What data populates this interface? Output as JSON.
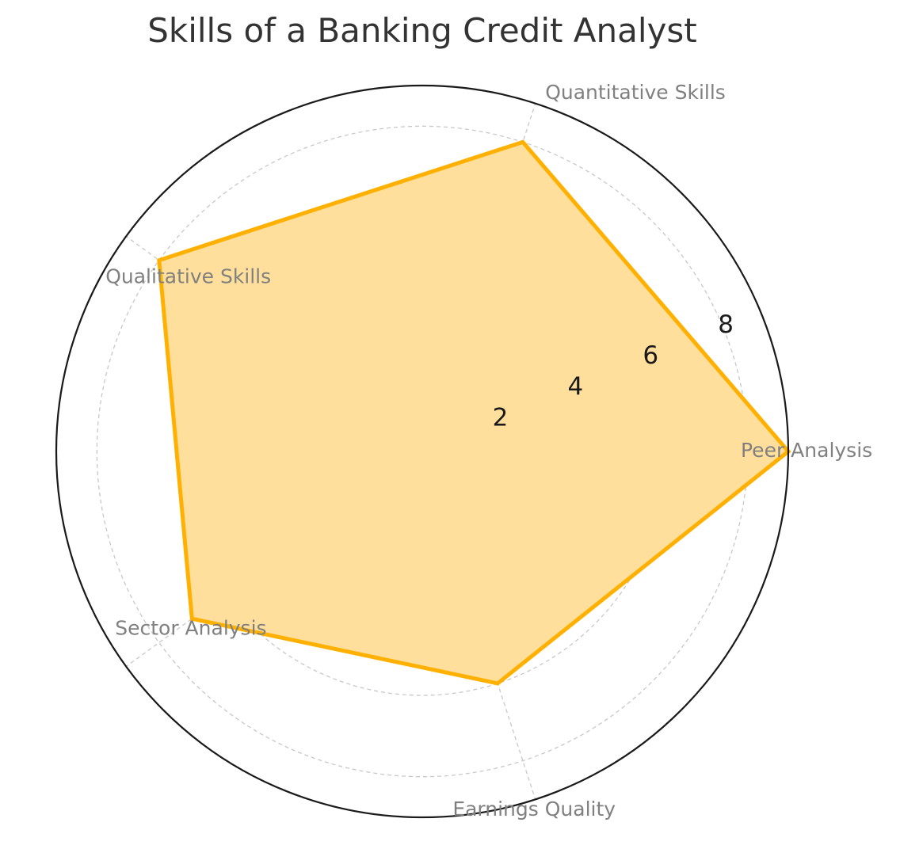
{
  "chart_data": {
    "type": "radar",
    "title": "Skills of a Banking Credit Analyst",
    "categories": [
      "Peer Analysis",
      "Quantitative Skills",
      "Qualitative Skills",
      "Sector Analysis",
      "Earnings Quality"
    ],
    "series": [
      {
        "values": [
          9,
          8,
          8,
          7,
          6
        ]
      }
    ],
    "rlim": [
      0,
      9
    ],
    "rticks": [
      2,
      4,
      6,
      8
    ],
    "grid": true,
    "colors": {
      "line": "#FFB000",
      "fill": "#FFDF9B",
      "outer": "#1a1a1a",
      "grid": "#c8c8c8"
    }
  }
}
